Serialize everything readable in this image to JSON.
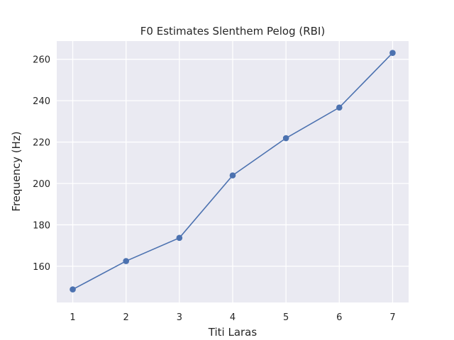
{
  "chart_data": {
    "type": "line",
    "title": "F0 Estimates Slenthem Pelog (RBI)",
    "xlabel": "Titi Laras",
    "ylabel": "Frequency (Hz)",
    "x": [
      1,
      2,
      3,
      4,
      5,
      6,
      7
    ],
    "series": [
      {
        "values": [
          148.8,
          162.5,
          173.7,
          203.9,
          221.9,
          236.7,
          263.1
        ]
      }
    ],
    "xlim": [
      0.7,
      7.3
    ],
    "ylim": [
      142.5,
      268.8
    ],
    "xticks": [
      1,
      2,
      3,
      4,
      5,
      6,
      7
    ],
    "yticks": [
      160,
      180,
      200,
      220,
      240,
      260
    ],
    "grid": true,
    "legend": "none",
    "colors": {
      "plot_bg": "#eaeaf2",
      "grid": "#ffffff",
      "line": "#4c72b0"
    }
  }
}
